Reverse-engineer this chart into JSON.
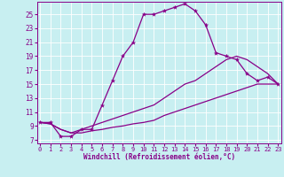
{
  "bg_color": "#c8eff1",
  "line_color": "#880088",
  "xlim_min": -0.3,
  "xlim_max": 23.3,
  "ylim_min": 6.5,
  "ylim_max": 26.8,
  "xticks": [
    0,
    1,
    2,
    3,
    4,
    5,
    6,
    7,
    8,
    9,
    10,
    11,
    12,
    13,
    14,
    15,
    16,
    17,
    18,
    19,
    20,
    21,
    22,
    23
  ],
  "yticks": [
    7,
    9,
    11,
    13,
    15,
    17,
    19,
    21,
    23,
    25
  ],
  "xlabel": "Windchill (Refroidissement éolien,°C)",
  "line1_x": [
    0,
    1,
    2,
    3,
    4,
    5,
    6,
    7,
    8,
    9,
    10,
    11,
    12,
    13,
    14,
    15,
    16,
    17,
    18,
    19,
    20,
    21,
    22,
    23
  ],
  "line1_y": [
    9.5,
    9.5,
    7.5,
    7.5,
    8.5,
    8.5,
    12.0,
    15.5,
    19.0,
    21.0,
    25.0,
    25.0,
    25.5,
    26.0,
    26.5,
    25.5,
    23.5,
    19.5,
    19.0,
    18.5,
    16.5,
    15.5,
    16.0,
    15.0
  ],
  "line2_x": [
    0,
    1,
    2,
    3,
    4,
    5,
    6,
    7,
    8,
    9,
    10,
    11,
    12,
    13,
    14,
    15,
    16,
    17,
    18,
    19,
    20,
    21,
    22,
    23
  ],
  "line2_y": [
    9.5,
    9.3,
    8.5,
    8.0,
    8.0,
    8.3,
    8.5,
    8.8,
    9.0,
    9.3,
    9.5,
    9.8,
    10.5,
    11.0,
    11.5,
    12.0,
    12.5,
    13.0,
    13.5,
    14.0,
    14.5,
    15.0,
    15.0,
    15.0
  ],
  "line3_x": [
    0,
    1,
    2,
    3,
    4,
    5,
    6,
    7,
    8,
    9,
    10,
    11,
    12,
    13,
    14,
    15,
    16,
    17,
    18,
    19,
    20,
    21,
    22,
    23
  ],
  "line3_y": [
    9.5,
    9.3,
    8.5,
    8.0,
    8.5,
    9.0,
    9.5,
    10.0,
    10.5,
    11.0,
    11.5,
    12.0,
    13.0,
    14.0,
    15.0,
    15.5,
    16.5,
    17.5,
    18.5,
    19.0,
    18.5,
    17.5,
    16.5,
    15.0
  ]
}
